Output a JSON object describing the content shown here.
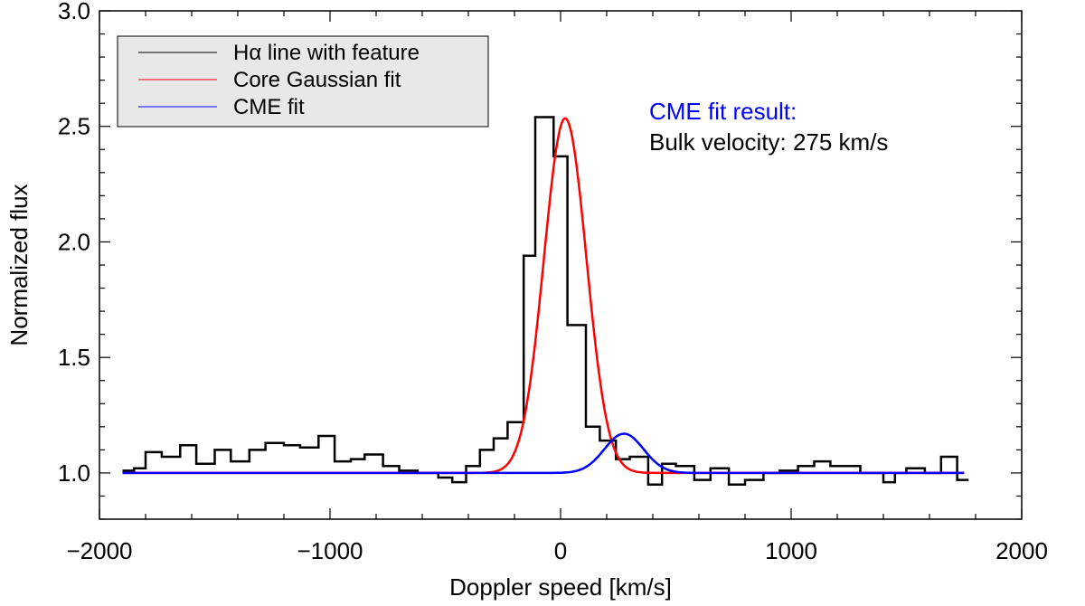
{
  "chart_data": {
    "type": "line",
    "title": "",
    "xlabel": "Doppler speed [km/s]",
    "ylabel": "Normalized flux",
    "xlim": [
      -2000,
      2000
    ],
    "ylim": [
      0.8,
      3.0
    ],
    "xticks": [
      -2000,
      -1000,
      0,
      1000,
      2000
    ],
    "xtick_labels": [
      "−2000",
      "−1000",
      "0",
      "1000",
      "2000"
    ],
    "yticks": [
      1.0,
      1.5,
      2.0,
      2.5,
      3.0
    ],
    "ytick_labels": [
      "1.0",
      "1.5",
      "2.0",
      "2.5",
      "3.0"
    ],
    "grid": false,
    "legend": {
      "position": "top-left",
      "entries": [
        {
          "name": "Hα line with feature",
          "color": "#000000"
        },
        {
          "name": "Core Gaussian fit",
          "color": "#ff0000"
        },
        {
          "name": "CME fit",
          "color": "#0000ff"
        }
      ]
    },
    "annotations": {
      "heading": "CME fit result:",
      "heading_color": "#0000ff",
      "line": "Bulk velocity: 275 km/s",
      "line_color": "#000000"
    },
    "series": [
      {
        "name": "Hα line with feature",
        "style": "histogram-step",
        "color": "#000000",
        "bin_edges": [
          -1900,
          -1850,
          -1800,
          -1730,
          -1650,
          -1580,
          -1500,
          -1430,
          -1350,
          -1280,
          -1200,
          -1130,
          -1050,
          -980,
          -910,
          -850,
          -770,
          -700,
          -620,
          -530,
          -470,
          -410,
          -350,
          -290,
          -230,
          -160,
          -110,
          -30,
          30,
          110,
          170,
          240,
          300,
          380,
          440,
          500,
          580,
          650,
          730,
          800,
          880,
          950,
          1030,
          1100,
          1170,
          1250,
          1300,
          1400,
          1450,
          1500,
          1580,
          1650,
          1720,
          1770
        ],
        "values": [
          1.01,
          1.02,
          1.09,
          1.07,
          1.12,
          1.04,
          1.1,
          1.05,
          1.1,
          1.13,
          1.12,
          1.11,
          1.16,
          1.05,
          1.06,
          1.08,
          1.03,
          1.01,
          1.0,
          0.98,
          0.96,
          1.03,
          1.1,
          1.15,
          1.22,
          1.94,
          2.54,
          2.37,
          1.64,
          1.2,
          1.14,
          1.06,
          1.07,
          0.95,
          1.04,
          1.03,
          0.97,
          1.02,
          0.95,
          0.97,
          1.0,
          1.01,
          1.03,
          1.05,
          1.03,
          1.03,
          1.0,
          0.96,
          1.0,
          1.02,
          1.0,
          1.07,
          0.97
        ]
      },
      {
        "name": "Core Gaussian fit",
        "style": "gaussian",
        "color": "#ff0000",
        "baseline": 1.0,
        "amplitude": 1.535,
        "center": 20,
        "sigma": 92,
        "x_range": [
          -1900,
          1750
        ]
      },
      {
        "name": "CME fit",
        "style": "gaussian",
        "color": "#0000ff",
        "baseline": 1.0,
        "amplitude": 0.17,
        "center": 275,
        "sigma": 85,
        "x_range": [
          -1900,
          1750
        ]
      }
    ]
  }
}
